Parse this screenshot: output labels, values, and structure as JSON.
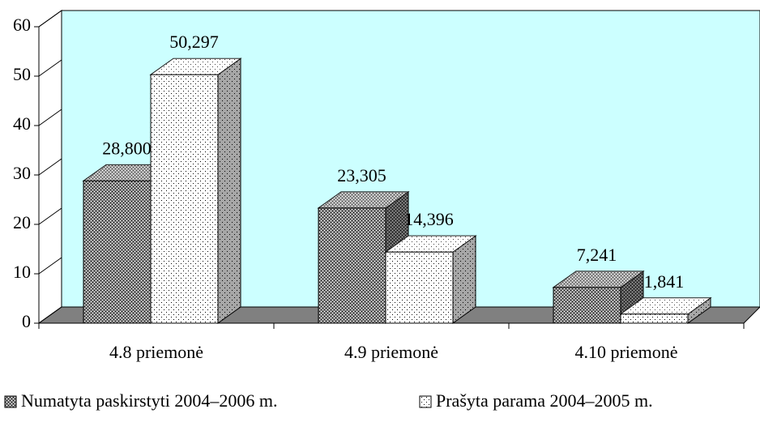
{
  "chart_data": {
    "type": "bar3d",
    "categories": [
      "4.8 priemonė",
      "4.9 priemonė",
      "4.10 priemonė"
    ],
    "series": [
      {
        "name": "Numatyta paskirstyti 2004–2006 m.",
        "color": "#808080",
        "values": [
          28.8,
          23.305,
          7.241
        ],
        "value_labels": [
          "28,800",
          "23,305",
          "7,241"
        ]
      },
      {
        "name": "Prašyta parama 2004–2005 m.",
        "color": "#ffffff",
        "values": [
          50.297,
          14.396,
          1.841
        ],
        "value_labels": [
          "50,297",
          "14,396",
          "1,841"
        ]
      }
    ],
    "ylim": [
      0,
      60
    ],
    "yticks": [
      0,
      10,
      20,
      30,
      40,
      50,
      60
    ],
    "wall_color": "#ccffff",
    "floor_color": "#808080",
    "legend": "bottom"
  }
}
